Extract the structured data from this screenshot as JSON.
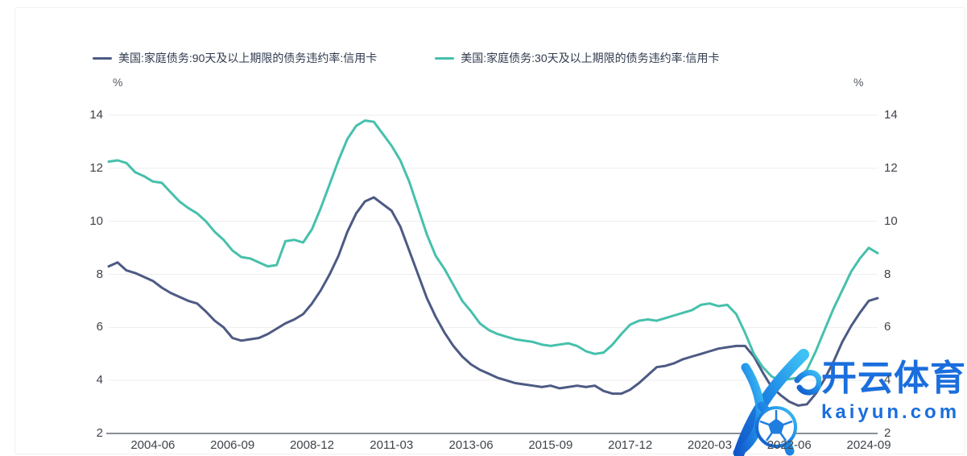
{
  "legend": {
    "items": [
      {
        "label": "美国:家庭债务:90天及以上期限的债务违约率:信用卡",
        "color": "#4d5a84"
      },
      {
        "label": "美国:家庭债务:30天及以上期限的债务违约率:信用卡",
        "color": "#46c0ac"
      }
    ]
  },
  "y_axis": {
    "unit": "%",
    "ticks": [
      14,
      12,
      10,
      8,
      6,
      4,
      2
    ],
    "min": 2,
    "max": 14
  },
  "x_axis": {
    "ticks": [
      {
        "label": "2004-06",
        "index": 5
      },
      {
        "label": "2006-09",
        "index": 14
      },
      {
        "label": "2008-12",
        "index": 23
      },
      {
        "label": "2011-03",
        "index": 32
      },
      {
        "label": "2013-06",
        "index": 41
      },
      {
        "label": "2015-09",
        "index": 50
      },
      {
        "label": "2017-12",
        "index": 59
      },
      {
        "label": "2020-03",
        "index": 68
      },
      {
        "label": "2022-06",
        "index": 77
      },
      {
        "label": "2024-09",
        "index": 86
      }
    ]
  },
  "watermark": {
    "title": "开云体育",
    "domain": "kaiyun.com",
    "color": "#1a6edd"
  },
  "chart_data": {
    "type": "line",
    "frequency": "quarterly",
    "x_start": "2003-03",
    "x_end": "2024-12",
    "x_visible_ticks": [
      "2004-06",
      "2006-09",
      "2008-12",
      "2011-03",
      "2013-06",
      "2015-09",
      "2017-12",
      "2020-03",
      "2022-06",
      "2024-09"
    ],
    "ylabel": "%",
    "ylim": [
      2,
      14
    ],
    "y_ticks": [
      14,
      12,
      10,
      8,
      6,
      4,
      2
    ],
    "grid": "horizontal",
    "legend_position": "top",
    "series": [
      {
        "name": "美国:家庭债务:90天及以上期限的债务违约率:信用卡",
        "color": "#4d5a84",
        "values": [
          8.3,
          8.45,
          8.15,
          8.05,
          7.9,
          7.75,
          7.5,
          7.3,
          7.15,
          7.0,
          6.9,
          6.6,
          6.25,
          6.0,
          5.6,
          5.5,
          5.55,
          5.6,
          5.75,
          5.95,
          6.15,
          6.3,
          6.5,
          6.9,
          7.4,
          8.0,
          8.7,
          9.6,
          10.3,
          10.75,
          10.9,
          10.65,
          10.4,
          9.8,
          8.9,
          8.0,
          7.1,
          6.4,
          5.8,
          5.3,
          4.9,
          4.6,
          4.4,
          4.25,
          4.1,
          4.0,
          3.9,
          3.85,
          3.8,
          3.75,
          3.8,
          3.7,
          3.75,
          3.8,
          3.75,
          3.8,
          3.6,
          3.5,
          3.5,
          3.65,
          3.9,
          4.2,
          4.5,
          4.55,
          4.65,
          4.8,
          4.9,
          5.0,
          5.1,
          5.2,
          5.25,
          5.3,
          5.3,
          4.9,
          4.3,
          3.75,
          3.45,
          3.2,
          3.05,
          3.1,
          3.5,
          4.05,
          4.7,
          5.45,
          6.05,
          6.55,
          7.0,
          7.1
        ]
      },
      {
        "name": "美国:家庭债务:30天及以上期限的债务违约率:信用卡",
        "color": "#46c0ac",
        "values": [
          12.25,
          12.3,
          12.2,
          11.85,
          11.7,
          11.5,
          11.45,
          11.1,
          10.75,
          10.5,
          10.3,
          10.0,
          9.6,
          9.3,
          8.9,
          8.65,
          8.6,
          8.45,
          8.3,
          8.35,
          9.25,
          9.3,
          9.2,
          9.7,
          10.5,
          11.4,
          12.3,
          13.1,
          13.6,
          13.8,
          13.75,
          13.3,
          12.85,
          12.3,
          11.5,
          10.5,
          9.5,
          8.7,
          8.2,
          7.6,
          7.0,
          6.6,
          6.15,
          5.9,
          5.75,
          5.65,
          5.55,
          5.5,
          5.45,
          5.35,
          5.3,
          5.35,
          5.4,
          5.3,
          5.1,
          5.0,
          5.05,
          5.35,
          5.75,
          6.1,
          6.25,
          6.3,
          6.25,
          6.35,
          6.45,
          6.55,
          6.65,
          6.85,
          6.9,
          6.8,
          6.85,
          6.5,
          5.8,
          5.0,
          4.5,
          4.15,
          4.0,
          4.05,
          4.1,
          4.4,
          5.1,
          5.9,
          6.7,
          7.4,
          8.1,
          8.6,
          9.0,
          8.8
        ]
      }
    ]
  }
}
